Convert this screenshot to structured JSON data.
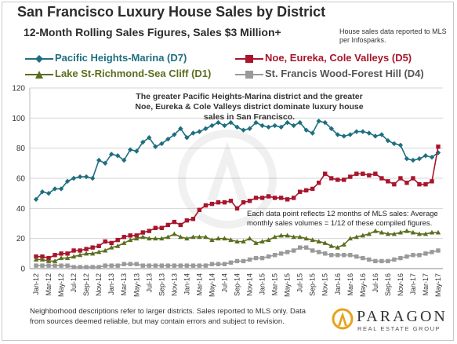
{
  "header": {
    "title": "San Francisco Luxury House Sales by District",
    "subtitle": "12-Month Rolling Sales Figures, Sales $3 Million+",
    "source_note": "House sales data reported to MLS per Infosparks."
  },
  "legend": [
    {
      "label": "Pacific Heights-Marina (D7)",
      "color": "#1f6f80",
      "marker": "diamond"
    },
    {
      "label": "Noe, Eureka, Cole Valleys (D5)",
      "color": "#a8152c",
      "marker": "square"
    },
    {
      "label": "Lake St-Richmond-Sea Cliff (D1)",
      "color": "#5a6e1e",
      "marker": "triangle"
    },
    {
      "label": "St. Francis Wood-Forest Hill (D4)",
      "color": "#9a9a9a",
      "marker": "square"
    }
  ],
  "annotations": {
    "main": "The greater Pacific Heights-Marina district and the greater Noe, Eureka & Cole Valleys district dominate luxury house sales in San Francisco.",
    "secondary": "Each data point reflects 12 months of MLS sales: Average monthly sales volumes = 1/12 of these compiled figures."
  },
  "footer": {
    "note": "Neighborhood descriptions refer to larger districts.  Sales reported to MLS only.  Data from sources deemed reliable, but may contain errors and subject to revision.",
    "logo_name": "PARAGON",
    "logo_sub": "REAL ESTATE GROUP"
  },
  "chart_data": {
    "type": "line",
    "title": "San Francisco Luxury House Sales by District",
    "subtitle": "12-Month Rolling Sales Figures, Sales $3 Million+",
    "ylim": [
      0,
      120
    ],
    "yticks": [
      0,
      20,
      40,
      60,
      80,
      100,
      120
    ],
    "grid": true,
    "legend_position": "top",
    "x": [
      "Jan-12",
      "Feb-12",
      "Mar-12",
      "Apr-12",
      "May-12",
      "Jun-12",
      "Jul-12",
      "Aug-12",
      "Sep-12",
      "Oct-12",
      "Nov-12",
      "Dec-12",
      "Jan-13",
      "Feb-13",
      "Mar-13",
      "Apr-13",
      "May-13",
      "Jun-13",
      "Jul-13",
      "Aug-13",
      "Sep-13",
      "Oct-13",
      "Nov-13",
      "Dec-13",
      "Jan-14",
      "Feb-14",
      "Mar-14",
      "Apr-14",
      "May-14",
      "Jun-14",
      "Jul-14",
      "Aug-14",
      "Sep-14",
      "Oct-14",
      "Nov-14",
      "Dec-14",
      "Jan-15",
      "Feb-15",
      "Mar-15",
      "Apr-15",
      "May-15",
      "Jun-15",
      "Jul-15",
      "Aug-15",
      "Sep-15",
      "Oct-15",
      "Nov-15",
      "Dec-15",
      "Jan-16",
      "Feb-16",
      "Mar-16",
      "Apr-16",
      "May-16",
      "Jun-16",
      "Jul-16",
      "Aug-16",
      "Sep-16",
      "Oct-16",
      "Nov-16",
      "Dec-16",
      "Jan-17",
      "Feb-17",
      "Mar-17",
      "Apr-17",
      "May-17"
    ],
    "xtick_labels": [
      "Jan-12",
      "Mar-12",
      "May-12",
      "Jul-12",
      "Sep-12",
      "Nov-12",
      "Jan-13",
      "Mar-13",
      "May-13",
      "Jul-13",
      "Sep-13",
      "Nov-13",
      "Jan-14",
      "Mar-14",
      "May-14",
      "Jul-14",
      "Sep-14",
      "Nov-14",
      "Jan-15",
      "Mar-15",
      "May-15",
      "Jul-15",
      "Sep-15",
      "Nov-15",
      "Jan-16",
      "Mar-16",
      "May-16",
      "Jul-16",
      "Sep-16",
      "Nov-16",
      "Jan-17",
      "Mar-17",
      "May-17"
    ],
    "series": [
      {
        "name": "Pacific Heights-Marina (D7)",
        "color": "#1f6f80",
        "marker": "diamond",
        "values": [
          46,
          51,
          50,
          53,
          53,
          58,
          60,
          61,
          61,
          60,
          72,
          70,
          76,
          75,
          72,
          79,
          78,
          84,
          87,
          81,
          83,
          86,
          89,
          93,
          87,
          90,
          91,
          93,
          95,
          97,
          95,
          97,
          94,
          92,
          93,
          97,
          95,
          94,
          95,
          94,
          97,
          95,
          97,
          92,
          90,
          98,
          97,
          93,
          89,
          88,
          89,
          91,
          91,
          90,
          88,
          89,
          85,
          83,
          82,
          73,
          72,
          73,
          75,
          74,
          77
        ]
      },
      {
        "name": "Noe, Eureka, Cole Valleys (D5)",
        "color": "#a8152c",
        "marker": "square",
        "values": [
          8,
          8,
          7,
          9,
          10,
          10,
          12,
          12,
          13,
          14,
          15,
          18,
          17,
          19,
          21,
          22,
          22,
          24,
          25,
          27,
          27,
          29,
          31,
          29,
          32,
          33,
          39,
          42,
          43,
          44,
          44,
          45,
          40,
          44,
          45,
          47,
          47,
          48,
          47,
          47,
          46,
          47,
          51,
          52,
          53,
          57,
          63,
          60,
          59,
          59,
          61,
          63,
          63,
          62,
          63,
          60,
          58,
          56,
          60,
          57,
          60,
          56,
          56,
          58,
          81
        ]
      },
      {
        "name": "Lake St-Richmond-Sea Cliff (D1)",
        "color": "#5a6e1e",
        "marker": "triangle",
        "values": [
          6,
          6,
          5,
          5,
          7,
          7,
          8,
          9,
          10,
          10,
          11,
          12,
          14,
          15,
          17,
          19,
          20,
          21,
          20,
          20,
          20,
          21,
          23,
          21,
          20,
          21,
          21,
          21,
          19,
          20,
          20,
          19,
          18,
          18,
          20,
          17,
          18,
          19,
          21,
          22,
          22,
          21,
          21,
          20,
          19,
          18,
          17,
          15,
          14,
          16,
          20,
          21,
          22,
          23,
          25,
          24,
          23,
          23,
          24,
          25,
          24,
          23,
          23,
          24,
          24
        ]
      },
      {
        "name": "St. Francis Wood-Forest Hill (D4)",
        "color": "#9a9a9a",
        "marker": "square",
        "values": [
          2,
          2,
          2,
          2,
          2,
          2,
          1,
          1,
          1,
          1,
          1,
          2,
          2,
          2,
          3,
          3,
          3,
          2,
          2,
          2,
          2,
          2,
          2,
          2,
          2,
          2,
          2,
          2,
          3,
          3,
          3,
          4,
          5,
          5,
          6,
          7,
          7,
          8,
          9,
          10,
          11,
          12,
          14,
          14,
          12,
          11,
          10,
          9,
          9,
          9,
          9,
          8,
          7,
          6,
          5,
          5,
          5,
          6,
          7,
          8,
          9,
          9,
          10,
          11,
          12
        ]
      }
    ]
  }
}
